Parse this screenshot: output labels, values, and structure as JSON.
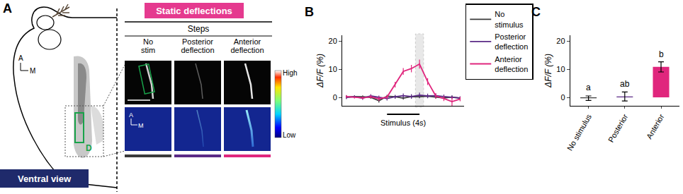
{
  "panel_a": {
    "panel": "A",
    "header": "Static deflections",
    "row_header": "Steps",
    "columns": [
      "No stim",
      "Posterior deflection",
      "Anterior deflection"
    ],
    "column_colors": [
      "#3a3a3a",
      "#5b2a86",
      "#e0267d"
    ],
    "colorbar": [
      "High",
      "Low"
    ],
    "view": "Ventral view",
    "anterior": "A",
    "medial": "M",
    "roi": "D"
  },
  "chart_data": [
    {
      "panel": "B",
      "type": "line",
      "x": [
        -5,
        -4,
        -3,
        -2,
        -1,
        0,
        1,
        2,
        3,
        4,
        5,
        6,
        7,
        8,
        9
      ],
      "series": [
        {
          "name": "No stimulus",
          "color": "#3a3a3a",
          "values": [
            0.1,
            0.3,
            0.2,
            0.0,
            -1.2,
            0.4,
            0.2,
            -0.3,
            0.3,
            0.2,
            0.4,
            0.1,
            -0.2,
            0.1,
            -0.3
          ],
          "errors": [
            0.5,
            0.4,
            0.5,
            0.5,
            0.7,
            0.5,
            0.5,
            0.5,
            0.6,
            0.5,
            0.5,
            0.5,
            0.5,
            0.5,
            0.5
          ]
        },
        {
          "name": "Posterior deflection",
          "color": "#5b2a86",
          "values": [
            0.0,
            0.2,
            -0.3,
            0.5,
            0.0,
            -0.4,
            0.2,
            0.6,
            0.3,
            0.8,
            0.5,
            0.6,
            0.3,
            0.1,
            -0.2
          ],
          "errors": [
            0.6,
            0.5,
            0.6,
            0.6,
            0.6,
            0.7,
            0.7,
            0.8,
            0.8,
            0.9,
            0.8,
            0.7,
            0.7,
            0.6,
            0.6
          ]
        },
        {
          "name": "Anterior deflection",
          "color": "#e0267d",
          "values": [
            0.3,
            0.0,
            -0.2,
            0.2,
            -0.5,
            0.1,
            4.5,
            9.2,
            10.2,
            11.8,
            5.6,
            0.5,
            -0.4,
            -1.5,
            -0.6
          ],
          "errors": [
            0.5,
            0.4,
            0.5,
            0.6,
            0.8,
            0.7,
            1.0,
            1.2,
            1.3,
            1.6,
            1.2,
            1.0,
            0.9,
            1.6,
            0.8
          ]
        }
      ],
      "xlim": [
        -5.5,
        9.5
      ],
      "ylim": [
        -3,
        22
      ],
      "yticks": [
        0,
        10,
        20
      ],
      "y_label": "ΔF/F (%)",
      "tick_labels": "y",
      "legend": "right",
      "stimulus": {
        "label": "Stimulus (4s)",
        "x": [
          0,
          4
        ]
      },
      "shaded_x": [
        3.5,
        4.5
      ]
    },
    {
      "panel": "C",
      "type": "bar",
      "categories": [
        "No stimulus",
        "Posterior",
        "Anterior"
      ],
      "values": [
        -0.3,
        0.3,
        10.8
      ],
      "errors": [
        0.8,
        1.6,
        1.8
      ],
      "colors": [
        "#3a3a3a",
        "#5b2a86",
        "#e0267d"
      ],
      "annotations": [
        "a",
        "ab",
        "b"
      ],
      "ylim": [
        -3,
        22
      ],
      "yticks": [
        0,
        10,
        20
      ],
      "y_label": "ΔF/F (%)"
    }
  ]
}
